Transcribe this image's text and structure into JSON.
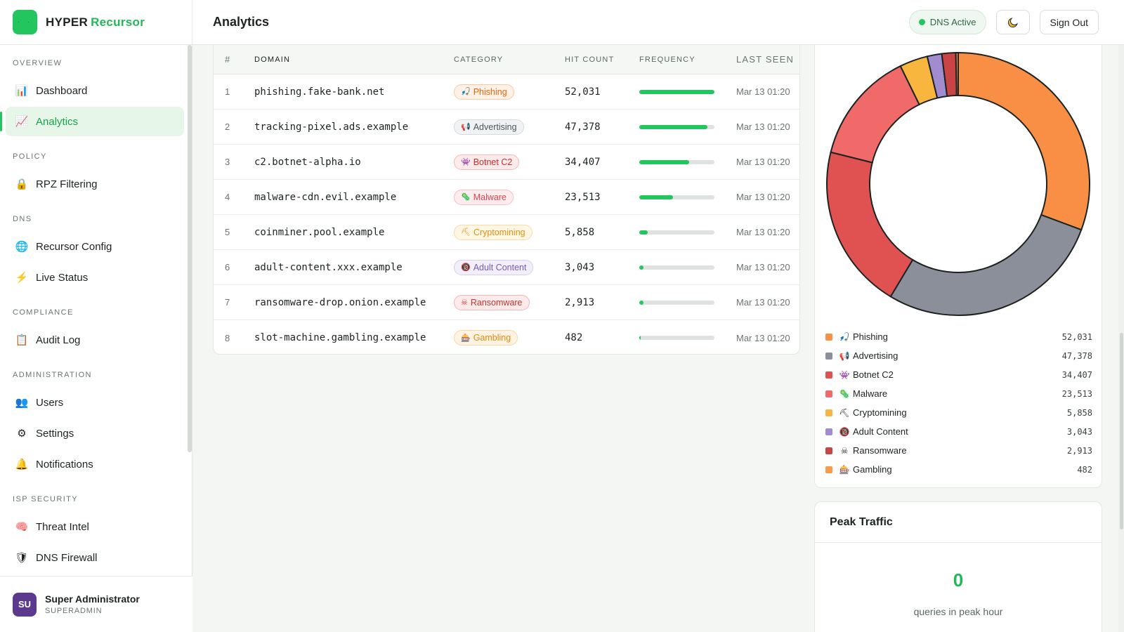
{
  "brand": {
    "name1": "HYPER",
    "name2": "Recursor"
  },
  "header": {
    "title": "Analytics",
    "dns_status": "DNS Active",
    "theme_icon": "moon-icon",
    "sign_out": "Sign Out"
  },
  "sidebar": {
    "sections": [
      {
        "title": "Overview",
        "items": [
          {
            "label": "Dashboard",
            "icon": "bar-chart-icon"
          },
          {
            "label": "Analytics",
            "icon": "chart-up-icon",
            "active": true
          }
        ]
      },
      {
        "title": "Policy",
        "items": [
          {
            "label": "RPZ Filtering",
            "icon": "lock-icon"
          }
        ]
      },
      {
        "title": "DNS",
        "items": [
          {
            "label": "Recursor Config",
            "icon": "globe-icon"
          },
          {
            "label": "Live Status",
            "icon": "bolt-icon"
          }
        ]
      },
      {
        "title": "Compliance",
        "items": [
          {
            "label": "Audit Log",
            "icon": "clipboard-icon"
          }
        ]
      },
      {
        "title": "Administration",
        "items": [
          {
            "label": "Users",
            "icon": "users-icon"
          },
          {
            "label": "Settings",
            "icon": "gear-icon"
          },
          {
            "label": "Notifications",
            "icon": "bell-icon"
          }
        ]
      },
      {
        "title": "ISP Security",
        "items": [
          {
            "label": "Threat Intel",
            "icon": "brain-icon"
          },
          {
            "label": "DNS Firewall",
            "icon": "shield-icon"
          }
        ]
      }
    ]
  },
  "user": {
    "initials": "SU",
    "name": "Super Administrator",
    "role": "SUPERADMIN"
  },
  "table": {
    "headers": {
      "num": "#",
      "domain": "Domain",
      "category": "Category",
      "hits": "Hit Count",
      "freq": "Frequency",
      "seen": "Last Seen"
    },
    "rows": [
      {
        "num": "1",
        "domain": "phishing.fake-bank.net",
        "category": "Phishing",
        "icon": "🎣",
        "hits": "52,031",
        "freq": 1.0,
        "seen": "Mar 13 01:20"
      },
      {
        "num": "2",
        "domain": "tracking-pixel.ads.example",
        "category": "Advertising",
        "icon": "📢",
        "hits": "47,378",
        "freq": 0.91,
        "seen": "Mar 13 01:20"
      },
      {
        "num": "3",
        "domain": "c2.botnet-alpha.io",
        "category": "Botnet C2",
        "icon": "👾",
        "hits": "34,407",
        "freq": 0.66,
        "seen": "Mar 13 01:20"
      },
      {
        "num": "4",
        "domain": "malware-cdn.evil.example",
        "category": "Malware",
        "icon": "🦠",
        "hits": "23,513",
        "freq": 0.45,
        "seen": "Mar 13 01:20"
      },
      {
        "num": "5",
        "domain": "coinminer.pool.example",
        "category": "Cryptomining",
        "icon": "⛏",
        "hits": "5,858",
        "freq": 0.11,
        "seen": "Mar 13 01:20"
      },
      {
        "num": "6",
        "domain": "adult-content.xxx.example",
        "category": "Adult Content",
        "icon": "🔞",
        "hits": "3,043",
        "freq": 0.06,
        "seen": "Mar 13 01:20"
      },
      {
        "num": "7",
        "domain": "ransomware-drop.onion.example",
        "category": "Ransomware",
        "icon": "☠",
        "hits": "2,913",
        "freq": 0.06,
        "seen": "Mar 13 01:20"
      },
      {
        "num": "8",
        "domain": "slot-machine.gambling.example",
        "category": "Gambling",
        "icon": "🎰",
        "hits": "482",
        "freq": 0.01,
        "seen": "Mar 13 01:20"
      }
    ]
  },
  "category_colors": {
    "Phishing": {
      "fg": "#e8650d",
      "bg": "#fff1e6",
      "border": "#f7c9a3",
      "chart": "#f98f45"
    },
    "Advertising": {
      "fg": "#4b5563",
      "bg": "#f1f2f4",
      "border": "#d6d9de",
      "chart": "#8a8f99"
    },
    "Botnet C2": {
      "fg": "#c9302c",
      "bg": "#fdeaea",
      "border": "#f4b9b7",
      "chart": "#e05252"
    },
    "Malware": {
      "fg": "#d9464f",
      "bg": "#fdeced",
      "border": "#f5bfc3",
      "chart": "#f06a6a"
    },
    "Cryptomining": {
      "fg": "#e39012",
      "bg": "#fff6e3",
      "border": "#f7dca6",
      "chart": "#f8b63e"
    },
    "Adult Content": {
      "fg": "#7a5bb5",
      "bg": "#f2eefa",
      "border": "#d7cdee",
      "chart": "#a08ccf"
    },
    "Ransomware": {
      "fg": "#c0352f",
      "bg": "#fdeaea",
      "border": "#f1b7b4",
      "chart": "#c94545"
    },
    "Gambling": {
      "fg": "#e38812",
      "bg": "#fff4e3",
      "border": "#f6d6a6",
      "chart": "#f9994a"
    }
  },
  "chart_data": {
    "type": "pie",
    "categories": [
      "Phishing",
      "Advertising",
      "Botnet C2",
      "Malware",
      "Cryptomining",
      "Adult Content",
      "Ransomware",
      "Gambling"
    ],
    "values": [
      52031,
      47378,
      34407,
      23513,
      5858,
      3043,
      2913,
      482
    ],
    "value_labels": [
      "52,031",
      "47,378",
      "34,407",
      "23,513",
      "5,858",
      "3,043",
      "2,913",
      "482"
    ],
    "legend": "bottom",
    "style": "donut"
  },
  "peak": {
    "title": "Peak Traffic",
    "value": "0",
    "label": "queries in peak hour"
  }
}
